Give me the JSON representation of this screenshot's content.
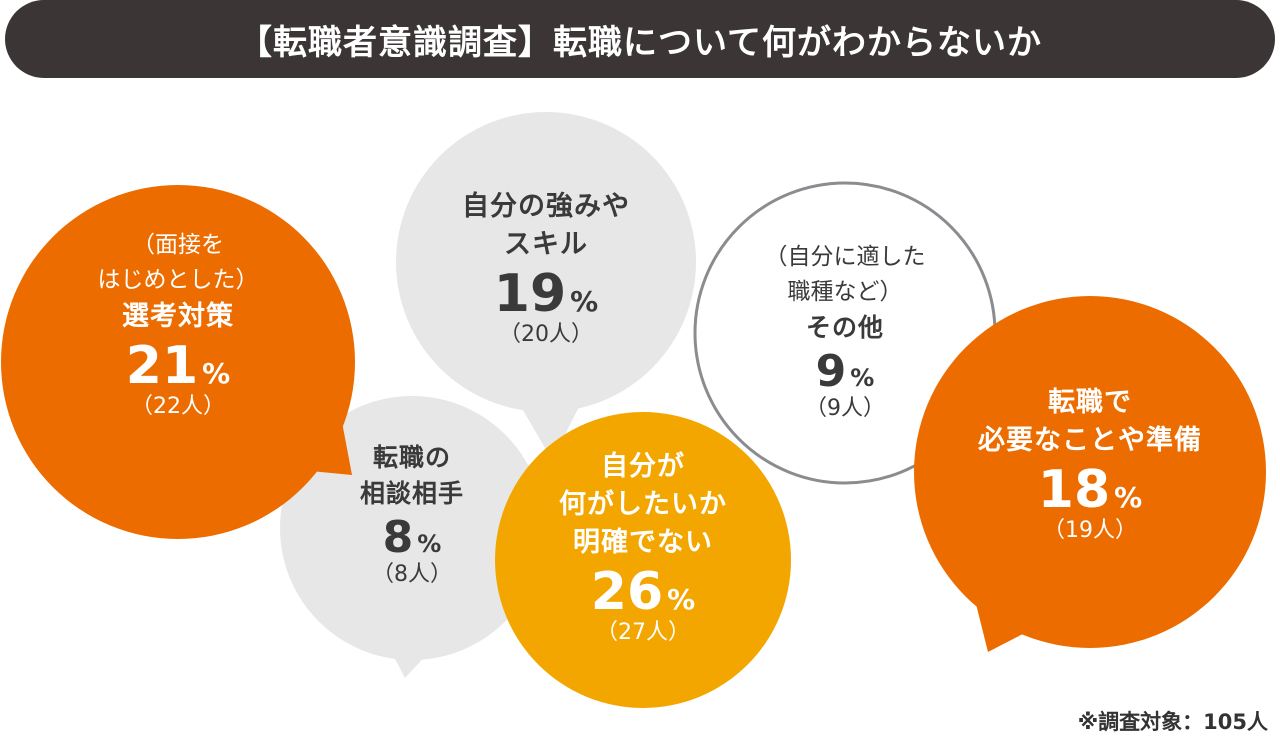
{
  "title": "【転職者意識調査】転職について何がわからないか",
  "footnote": "※調査対象：105人",
  "colors": {
    "title_bg": "#3b3535",
    "dark_orange": "#ec6c00",
    "amber": "#f3a600",
    "light_gray": "#e7e7e8",
    "outline_gray": "#8a8c90",
    "text_dark": "#3a3a3a",
    "text_white": "#ffffff"
  },
  "chart_data": {
    "type": "bubble",
    "unit": "%",
    "items": [
      {
        "id": "interview",
        "note": [
          "（面接を",
          "はじめとした）"
        ],
        "label": [
          "選考対策"
        ],
        "percent": 21,
        "percent_text": "21",
        "count_text": "（22人）"
      },
      {
        "id": "strengths",
        "note": [],
        "label": [
          "自分の強みや",
          "スキル"
        ],
        "percent": 19,
        "percent_text": "19",
        "count_text": "（20人）"
      },
      {
        "id": "other",
        "note": [
          "（自分に適した",
          "職種など）"
        ],
        "label": [
          "その他"
        ],
        "percent": 9,
        "percent_text": "9",
        "count_text": "（9人）"
      },
      {
        "id": "consult",
        "note": [],
        "label": [
          "転職の",
          "相談相手"
        ],
        "percent": 8,
        "percent_text": "8",
        "count_text": "（8人）"
      },
      {
        "id": "unclear",
        "note": [],
        "label": [
          "自分が",
          "何がしたいか",
          "明確でない"
        ],
        "percent": 26,
        "percent_text": "26",
        "count_text": "（27人）"
      },
      {
        "id": "prep",
        "note": [],
        "label": [
          "転職で",
          "必要なことや準備"
        ],
        "percent": 18,
        "percent_text": "18",
        "count_text": "（19人）"
      }
    ]
  }
}
